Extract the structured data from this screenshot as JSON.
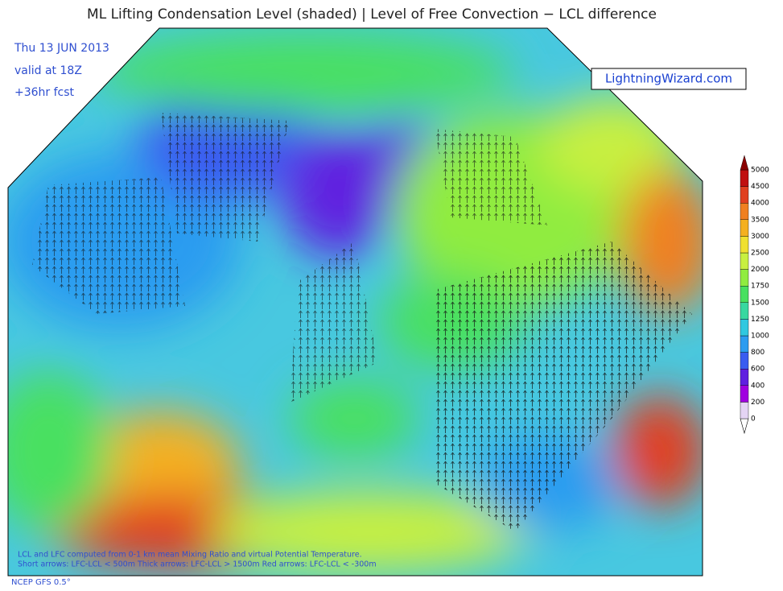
{
  "title": "ML Lifting Condensation Level (shaded) | Level of Free Convection − LCL difference",
  "date_info": [
    "Thu 13 JUN 2013",
    "valid at 18Z",
    "+36hr fcst"
  ],
  "brand": "LightningWizard.com",
  "footnotes": [
    "LCL and LFC computed from 0-1 km mean Mixing Ratio and virtual Potential Temperature.",
    "Short arrows: LFC-LCL < 500m   Thick arrows: LFC-LCL > 1500m   Red arrows: LFC-LCL < -300m"
  ],
  "source": "NCEP GFS 0.5°",
  "colorbar": {
    "levels": [
      0,
      200,
      400,
      600,
      800,
      1000,
      1250,
      1500,
      1750,
      2000,
      2500,
      3000,
      3500,
      4000,
      4500,
      5000
    ],
    "colors": [
      "#e4d4f4",
      "#a000e0",
      "#6020e0",
      "#3a5cf0",
      "#2c9cf0",
      "#30c8e0",
      "#38d8a0",
      "#48e060",
      "#90ec40",
      "#c8f040",
      "#f0e030",
      "#f4b020",
      "#f08020",
      "#e04020",
      "#c01010",
      "#8a0000"
    ]
  }
}
